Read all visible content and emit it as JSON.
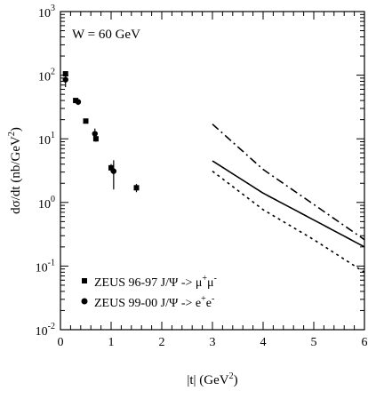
{
  "chart_data": {
    "type": "scatter",
    "annotation": "W = 60 GeV",
    "xlabel_parts": [
      "|t| (GeV",
      "2",
      ")"
    ],
    "ylabel_parts": [
      "dσ/dt (nb/GeV",
      "2",
      ")"
    ],
    "xlim": [
      0,
      6
    ],
    "ylim": [
      0.01,
      1000
    ],
    "yscale": "log",
    "x_ticks": [
      0,
      1,
      2,
      3,
      4,
      5,
      6
    ],
    "x_tick_labels": [
      "0",
      "1",
      "2",
      "3",
      "4",
      "5",
      "6"
    ],
    "y_ticks": [
      0.01,
      0.1,
      1,
      10,
      100,
      1000
    ],
    "y_tick_labels": [
      {
        "base": "10",
        "exp": "-2"
      },
      {
        "base": "10",
        "exp": "-1"
      },
      {
        "base": "10",
        "exp": "0"
      },
      {
        "base": "10",
        "exp": "1"
      },
      {
        "base": "10",
        "exp": "2"
      },
      {
        "base": "10",
        "exp": "3"
      }
    ],
    "grid": false,
    "legend_position": "bottom-left",
    "series": [
      {
        "name": "ZEUS 96-97 J/Ψ -> μ⁺μ⁻",
        "legend_text": "ZEUS 96-97 J/Ψ -> μ",
        "legend_sup": "+",
        "legend_text2": "μ",
        "legend_sup2": "-",
        "marker": "square",
        "x": [
          0.1,
          0.3,
          0.5,
          0.7,
          1.0,
          1.5
        ],
        "y": [
          105,
          40,
          19,
          10,
          3.5,
          1.7
        ],
        "yerr": [
          10,
          3,
          1.5,
          1,
          0.5,
          0.25
        ]
      },
      {
        "name": "ZEUS 99-00 J/Ψ -> e⁺e⁻",
        "legend_text": "ZEUS 99-00 J/Ψ -> e",
        "legend_sup": "+",
        "legend_text2": "e",
        "legend_sup2": "-",
        "marker": "circle",
        "x": [
          0.1,
          0.35,
          0.68,
          1.05
        ],
        "y": [
          85,
          38,
          12,
          3.1
        ],
        "yerr": [
          20,
          4,
          2.5,
          1.5
        ]
      }
    ],
    "curves": [
      {
        "style": "dashdot",
        "x": [
          3,
          4,
          5,
          6
        ],
        "y": [
          17,
          3.3,
          0.93,
          0.26
        ]
      },
      {
        "style": "solid",
        "x": [
          3,
          4,
          5,
          6
        ],
        "y": [
          4.5,
          1.4,
          0.53,
          0.2
        ]
      },
      {
        "style": "dotted",
        "x": [
          3,
          4,
          5,
          6
        ],
        "y": [
          3.1,
          0.77,
          0.26,
          0.08
        ]
      }
    ],
    "colors": {
      "ink": "#000000",
      "background": "#ffffff"
    }
  }
}
